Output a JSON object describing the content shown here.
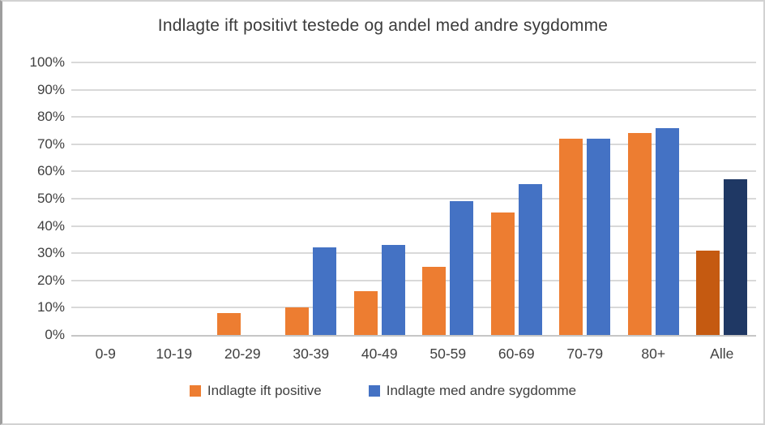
{
  "chart_data": {
    "type": "bar",
    "title": "Indlagte ift positivt testede og andel med andre sygdomme",
    "categories": [
      "0-9",
      "10-19",
      "20-29",
      "30-39",
      "40-49",
      "50-59",
      "60-69",
      "70-79",
      "80+",
      "Alle"
    ],
    "series": [
      {
        "name": "Indlagte ift positive",
        "color": "#ED7D31",
        "last_category_color": "#C55A11",
        "values": [
          0,
          0,
          8,
          10,
          16,
          25,
          45,
          72,
          74,
          31
        ]
      },
      {
        "name": "Indlagte med andre sygdomme",
        "color": "#4472C4",
        "last_category_color": "#1F3864",
        "values": [
          0,
          0,
          0,
          32,
          33,
          49,
          55.5,
          72,
          76,
          57
        ]
      }
    ],
    "xlabel": "",
    "ylabel": "",
    "ylim": [
      0,
      100
    ],
    "ytick_step": 10,
    "ytick_suffix": "%",
    "ytick_labels": [
      "0%",
      "10%",
      "20%",
      "30%",
      "40%",
      "50%",
      "60%",
      "70%",
      "80%",
      "90%",
      "100%"
    ],
    "grid": true,
    "legend_position": "bottom"
  },
  "colors": {
    "gridline": "#d9d9d9",
    "axis_line": "#c6c6c6",
    "text": "#404040",
    "background": "#ffffff",
    "frame_border": "#d2d2d2"
  }
}
